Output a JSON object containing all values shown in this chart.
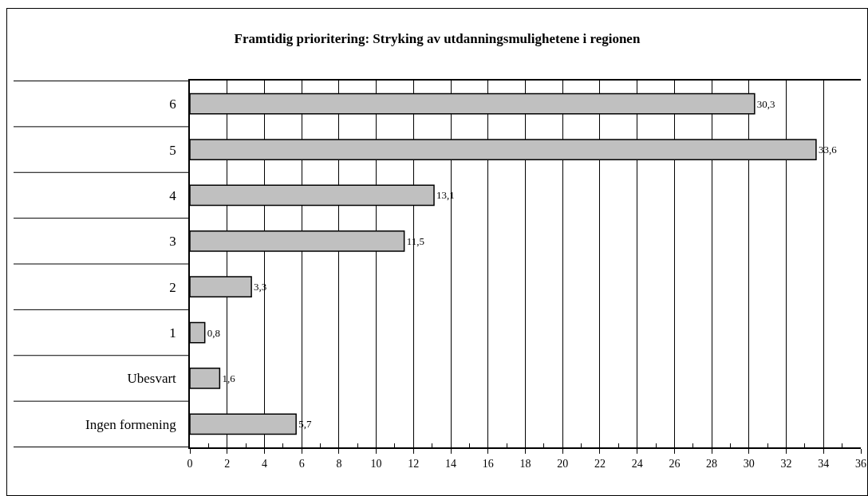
{
  "chart_data": {
    "type": "bar",
    "orientation": "horizontal",
    "title": "Framtidig prioritering: Stryking av utdanningsmulighetene i regionen",
    "categories": [
      "6",
      "5",
      "4",
      "3",
      "2",
      "1",
      "Ubesvart",
      "Ingen formening"
    ],
    "values": [
      30.3,
      33.6,
      13.1,
      11.5,
      3.3,
      0.8,
      1.6,
      5.7
    ],
    "value_labels": [
      "30,3",
      "33,6",
      "13,1",
      "11,5",
      "3,3",
      "0,8",
      "1,6",
      "5,7"
    ],
    "color": "#c0c0c0",
    "xlim": [
      0,
      36
    ],
    "xticks": [
      0,
      {
        "value": 1,
        "label": null
      },
      2,
      {
        "value": 3,
        "label": null
      },
      4,
      {
        "value": 5,
        "label": null
      },
      6,
      {
        "value": 7,
        "label": null
      },
      8,
      {
        "value": 9,
        "label": null
      },
      10,
      {
        "value": 11,
        "label": null
      },
      12,
      {
        "value": 13,
        "label": null
      },
      14,
      {
        "value": 15,
        "label": null
      },
      16,
      {
        "value": 17,
        "label": null
      },
      18,
      {
        "value": 19,
        "label": null
      },
      20,
      {
        "value": 21,
        "label": null
      },
      22,
      {
        "value": 23,
        "label": null
      },
      24,
      {
        "value": 25,
        "label": null
      },
      26,
      {
        "value": 27,
        "label": null
      },
      28,
      {
        "value": 29,
        "label": null
      },
      30,
      {
        "value": 31,
        "label": null
      },
      32,
      {
        "value": 33,
        "label": null
      },
      34,
      {
        "value": 35,
        "label": null
      },
      36
    ],
    "grid": "x"
  }
}
